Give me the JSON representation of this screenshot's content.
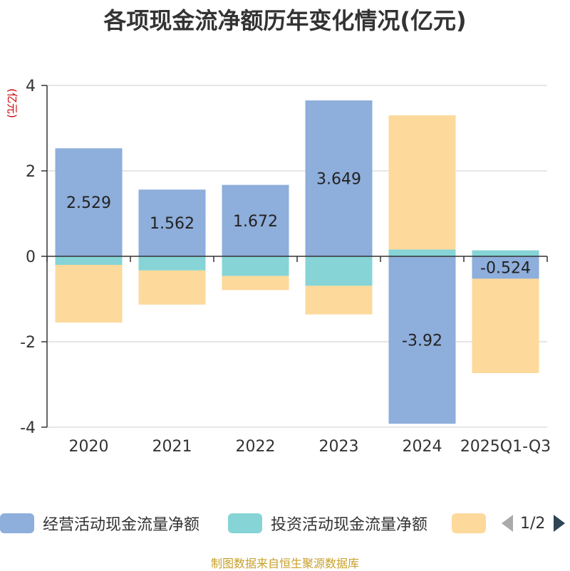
{
  "title": "各项现金流净额历年变化情况(亿元)",
  "source": "制图数据来自恒生聚源数据库",
  "chart_data": {
    "type": "bar",
    "stacked": true,
    "ylabel": "(亿元)",
    "ylim": [
      -4,
      4
    ],
    "yticks": [
      -4,
      -2,
      0,
      2,
      4
    ],
    "grid": true,
    "categories": [
      "2020",
      "2021",
      "2022",
      "2023",
      "2024",
      "2025Q1-Q3"
    ],
    "series": [
      {
        "name": "经营活动现金流量净额",
        "color": "#8eaedb",
        "values": [
          2.529,
          1.562,
          1.672,
          3.649,
          -3.92,
          -0.524
        ],
        "labels": [
          "2.529",
          "1.562",
          "1.672",
          "3.649",
          "-3.92",
          "-0.524"
        ]
      },
      {
        "name": "投资活动现金流量净额",
        "color": "#86d4d6",
        "values": [
          -0.2,
          -0.33,
          -0.46,
          -0.69,
          0.16,
          0.14
        ]
      },
      {
        "name": "",
        "color": "#fdd99b",
        "values": [
          -1.35,
          -0.8,
          -0.33,
          -0.67,
          3.14,
          -2.21
        ]
      }
    ],
    "legend_position": "bottom",
    "legend_page": "1/2"
  }
}
